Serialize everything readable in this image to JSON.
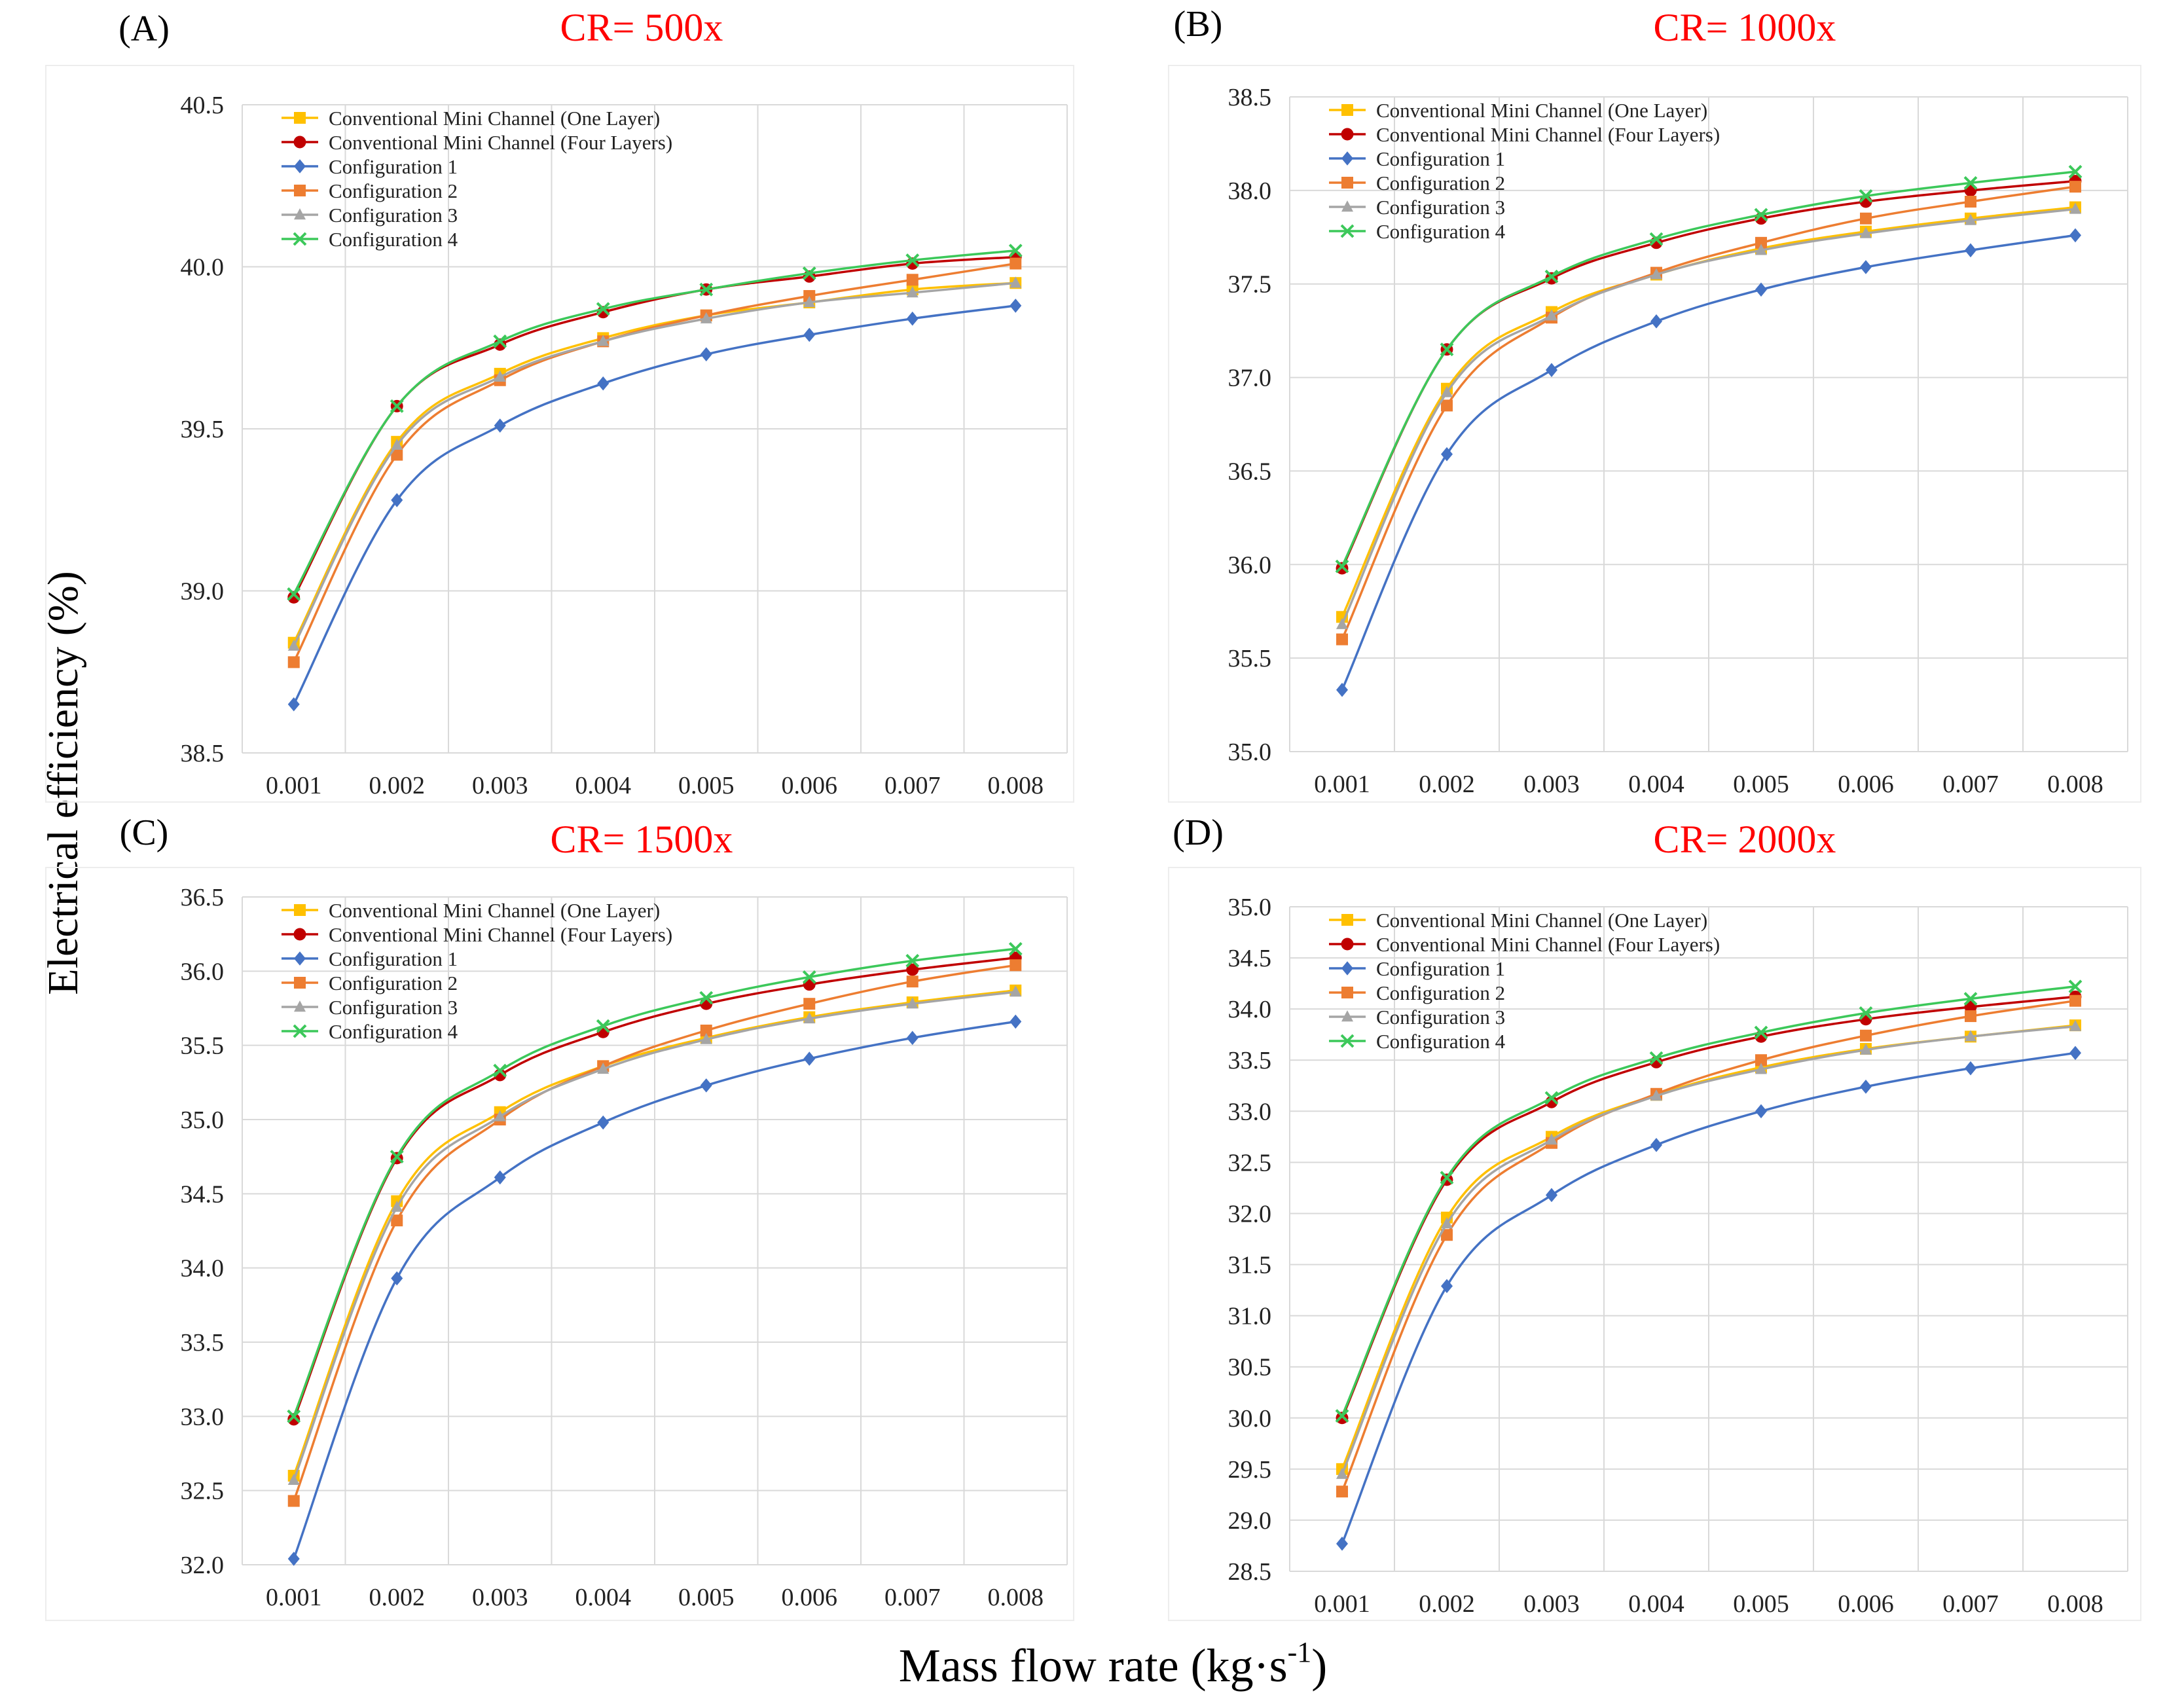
{
  "figure": {
    "ylabel": "Electrical efficiency (%)",
    "xlabel_main": "Mass flow rate (kg·s",
    "xlabel_sup": "-1",
    "xlabel_close": ")",
    "colors": {
      "one_layer": "#FFC000",
      "four_layers": "#C00000",
      "config1": "#4472C4",
      "config2": "#ED7D31",
      "config3": "#A5A5A5",
      "config4": "#3CC85A",
      "title": "#FF0000",
      "grid": "#D9D9D9"
    }
  },
  "chart_data": [
    {
      "type": "line",
      "panel": "(A)",
      "title": "CR= 500x",
      "categories": [
        "0.001",
        "0.002",
        "0.003",
        "0.004",
        "0.005",
        "0.006",
        "0.007",
        "0.008"
      ],
      "ylim": [
        38.5,
        40.5
      ],
      "yticks": [
        38.5,
        39.0,
        39.5,
        40.0,
        40.5
      ],
      "legend_position": "top-left",
      "series": [
        {
          "name": "Conventional Mini Channel (One Layer)",
          "marker": "square",
          "color_key": "one_layer",
          "values": [
            38.84,
            39.46,
            39.67,
            39.78,
            39.85,
            39.89,
            39.93,
            39.95
          ]
        },
        {
          "name": "Conventional Mini Channel (Four Layers)",
          "marker": "circle",
          "color_key": "four_layers",
          "values": [
            38.98,
            39.57,
            39.76,
            39.86,
            39.93,
            39.97,
            40.01,
            40.03
          ]
        },
        {
          "name": "Configuration 1",
          "marker": "diamond",
          "color_key": "config1",
          "values": [
            38.65,
            39.28,
            39.51,
            39.64,
            39.73,
            39.79,
            39.84,
            39.88
          ]
        },
        {
          "name": "Configuration 2",
          "marker": "square",
          "color_key": "config2",
          "values": [
            38.78,
            39.42,
            39.65,
            39.77,
            39.85,
            39.91,
            39.96,
            40.01
          ]
        },
        {
          "name": "Configuration 3",
          "marker": "triangle",
          "color_key": "config3",
          "values": [
            38.83,
            39.45,
            39.66,
            39.77,
            39.84,
            39.89,
            39.92,
            39.95
          ]
        },
        {
          "name": "Configuration 4",
          "marker": "x",
          "color_key": "config4",
          "values": [
            38.99,
            39.57,
            39.77,
            39.87,
            39.93,
            39.98,
            40.02,
            40.05
          ]
        }
      ]
    },
    {
      "type": "line",
      "panel": "(B)",
      "title": "CR= 1000x",
      "categories": [
        "0.001",
        "0.002",
        "0.003",
        "0.004",
        "0.005",
        "0.006",
        "0.007",
        "0.008"
      ],
      "ylim": [
        35.0,
        38.5
      ],
      "yticks": [
        35.0,
        35.5,
        36.0,
        36.5,
        37.0,
        37.5,
        38.0,
        38.5
      ],
      "legend_position": "top-left",
      "series": [
        {
          "name": "Conventional Mini Channel (One Layer)",
          "marker": "square",
          "color_key": "one_layer",
          "values": [
            35.72,
            36.94,
            37.35,
            37.55,
            37.69,
            37.78,
            37.85,
            37.91
          ]
        },
        {
          "name": "Conventional Mini Channel (Four Layers)",
          "marker": "circle",
          "color_key": "four_layers",
          "values": [
            35.98,
            37.15,
            37.53,
            37.72,
            37.85,
            37.94,
            38.0,
            38.05
          ]
        },
        {
          "name": "Configuration 1",
          "marker": "diamond",
          "color_key": "config1",
          "values": [
            35.33,
            36.59,
            37.04,
            37.3,
            37.47,
            37.59,
            37.68,
            37.76
          ]
        },
        {
          "name": "Configuration 2",
          "marker": "square",
          "color_key": "config2",
          "values": [
            35.6,
            36.85,
            37.32,
            37.56,
            37.72,
            37.85,
            37.94,
            38.02
          ]
        },
        {
          "name": "Configuration 3",
          "marker": "triangle",
          "color_key": "config3",
          "values": [
            35.68,
            36.92,
            37.33,
            37.55,
            37.68,
            37.77,
            37.84,
            37.9
          ]
        },
        {
          "name": "Configuration 4",
          "marker": "x",
          "color_key": "config4",
          "values": [
            35.99,
            37.15,
            37.54,
            37.74,
            37.87,
            37.97,
            38.04,
            38.1
          ]
        }
      ]
    },
    {
      "type": "line",
      "panel": "(C)",
      "title": "CR= 1500x",
      "categories": [
        "0.001",
        "0.002",
        "0.003",
        "0.004",
        "0.005",
        "0.006",
        "0.007",
        "0.008"
      ],
      "ylim": [
        32.0,
        36.5
      ],
      "yticks": [
        32.0,
        32.5,
        33.0,
        33.5,
        34.0,
        34.5,
        35.0,
        35.5,
        36.0,
        36.5
      ],
      "legend_position": "top-left",
      "series": [
        {
          "name": "Conventional Mini Channel (One Layer)",
          "marker": "square",
          "color_key": "one_layer",
          "values": [
            32.6,
            34.45,
            35.05,
            35.36,
            35.55,
            35.69,
            35.79,
            35.87
          ]
        },
        {
          "name": "Conventional Mini Channel (Four Layers)",
          "marker": "circle",
          "color_key": "four_layers",
          "values": [
            32.98,
            34.74,
            35.3,
            35.59,
            35.78,
            35.91,
            36.01,
            36.09
          ]
        },
        {
          "name": "Configuration 1",
          "marker": "diamond",
          "color_key": "config1",
          "values": [
            32.04,
            33.93,
            34.61,
            34.98,
            35.23,
            35.41,
            35.55,
            35.66
          ]
        },
        {
          "name": "Configuration 2",
          "marker": "square",
          "color_key": "config2",
          "values": [
            32.43,
            34.32,
            35.0,
            35.36,
            35.6,
            35.78,
            35.93,
            36.04
          ]
        },
        {
          "name": "Configuration 3",
          "marker": "triangle",
          "color_key": "config3",
          "values": [
            32.57,
            34.41,
            35.02,
            35.34,
            35.54,
            35.68,
            35.78,
            35.86
          ]
        },
        {
          "name": "Configuration 4",
          "marker": "x",
          "color_key": "config4",
          "values": [
            33.0,
            34.75,
            35.33,
            35.63,
            35.82,
            35.96,
            36.07,
            36.15
          ]
        }
      ]
    },
    {
      "type": "line",
      "panel": "(D)",
      "title": "CR= 2000x",
      "categories": [
        "0.001",
        "0.002",
        "0.003",
        "0.004",
        "0.005",
        "0.006",
        "0.007",
        "0.008"
      ],
      "ylim": [
        28.5,
        35.0
      ],
      "yticks": [
        28.5,
        29.0,
        29.5,
        30.0,
        30.5,
        31.0,
        31.5,
        32.0,
        32.5,
        33.0,
        33.5,
        34.0,
        34.5,
        35.0
      ],
      "legend_position": "top-left",
      "series": [
        {
          "name": "Conventional Mini Channel (One Layer)",
          "marker": "square",
          "color_key": "one_layer",
          "values": [
            29.5,
            31.96,
            32.75,
            33.16,
            33.43,
            33.61,
            33.73,
            33.84
          ]
        },
        {
          "name": "Conventional Mini Channel (Four Layers)",
          "marker": "circle",
          "color_key": "four_layers",
          "values": [
            30.0,
            32.33,
            33.09,
            33.48,
            33.73,
            33.9,
            34.02,
            34.12
          ]
        },
        {
          "name": "Configuration 1",
          "marker": "diamond",
          "color_key": "config1",
          "values": [
            28.77,
            31.29,
            32.18,
            32.67,
            33.0,
            33.24,
            33.42,
            33.57
          ]
        },
        {
          "name": "Configuration 2",
          "marker": "square",
          "color_key": "config2",
          "values": [
            29.28,
            31.79,
            32.69,
            33.17,
            33.5,
            33.74,
            33.93,
            34.08
          ]
        },
        {
          "name": "Configuration 3",
          "marker": "triangle",
          "color_key": "config3",
          "values": [
            29.45,
            31.9,
            32.72,
            33.15,
            33.41,
            33.6,
            33.73,
            33.83
          ]
        },
        {
          "name": "Configuration 4",
          "marker": "x",
          "color_key": "config4",
          "values": [
            30.02,
            32.35,
            33.13,
            33.52,
            33.77,
            33.96,
            34.1,
            34.22
          ]
        }
      ]
    }
  ]
}
